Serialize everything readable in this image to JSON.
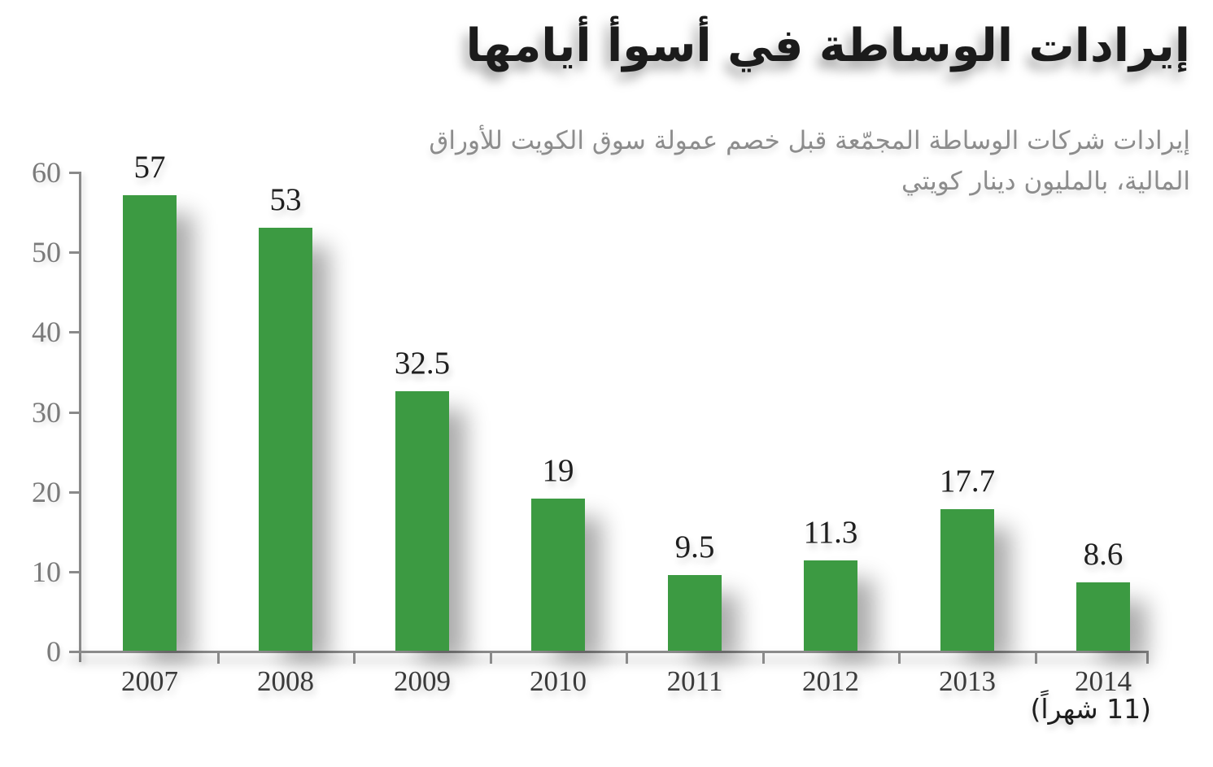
{
  "title": "إيرادات الوساطة في أسوأ أيامها",
  "subtitle_line1": "إيرادات شركات الوساطة المجمّعة قبل خصم عمولة سوق الكويت للأوراق",
  "subtitle_line2": "المالية، بالمليون دينار كويتي",
  "footnote": "(11 شهراً)",
  "colors": {
    "bar": "#3c9a42",
    "axis": "#8a8a8a",
    "y_tick_label": "#7a7a7a",
    "x_tick_label": "#3a3a3a",
    "value_label": "#1e1e1e",
    "title": "#1b1b1b",
    "subtitle": "#8c8c8c",
    "background": "#ffffff"
  },
  "chart_data": {
    "type": "bar",
    "categories": [
      "2007",
      "2008",
      "2009",
      "2010",
      "2011",
      "2012",
      "2013",
      "2014"
    ],
    "values": [
      57,
      53,
      32.5,
      19,
      9.5,
      11.3,
      17.7,
      8.6
    ],
    "value_labels": [
      "57",
      "53",
      "32.5",
      "19",
      "9.5",
      "11.3",
      "17.7",
      "8.6"
    ],
    "title": "إيرادات الوساطة في أسوأ أيامها",
    "subtitle": "إيرادات شركات الوساطة المجمّعة قبل خصم عمولة سوق الكويت للأوراق المالية، بالمليون دينار كويتي",
    "xlabel": "",
    "ylabel": "",
    "ylim": [
      0,
      60
    ],
    "yticks": [
      0,
      10,
      20,
      30,
      40,
      50,
      60
    ],
    "x_axis_note": "(11 شهراً)",
    "x_axis_note_applies_to": "2014",
    "grid": false,
    "legend": false,
    "bar_color": "#3c9a42"
  }
}
